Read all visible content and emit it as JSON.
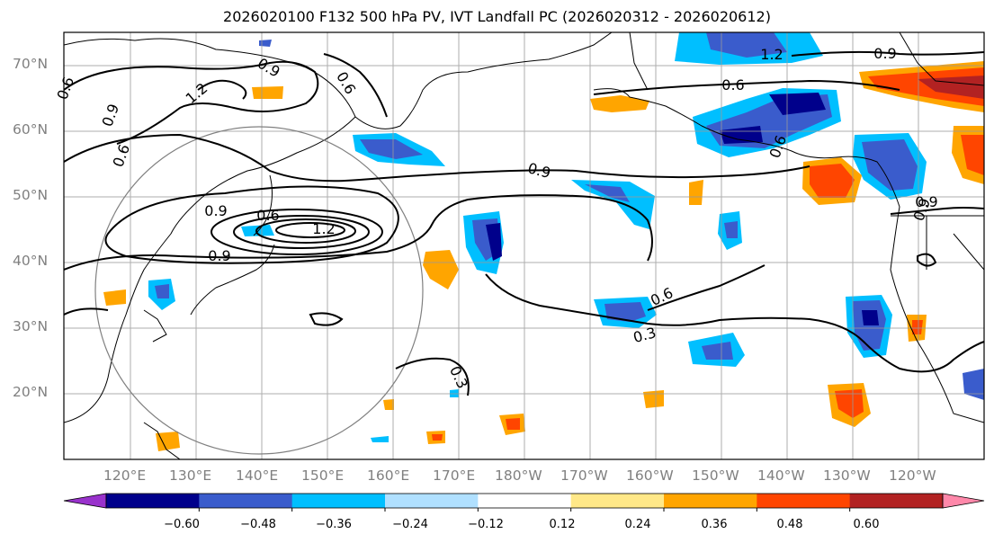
{
  "title": "2026020100 F132 500 hPa PV, IVT Landfall PC (2026020312 - 2026020612)",
  "lat_labels": [
    "70°N",
    "60°N",
    "50°N",
    "40°N",
    "30°N",
    "20°N"
  ],
  "lon_labels": [
    "120°E",
    "130°E",
    "140°E",
    "150°E",
    "160°E",
    "170°E",
    "180°W",
    "170°W",
    "160°W",
    "150°W",
    "140°W",
    "130°W",
    "120°W"
  ],
  "contour_labels": [
    "0.9",
    "0.9",
    "1.2",
    "0.6",
    "0.9",
    "0.6",
    "1.2",
    "0.9",
    "0.6",
    "0.9",
    "0.3",
    "0.6",
    "0.3",
    "1.2",
    "0.6",
    "0.9",
    "0.6",
    "0.9",
    "0.6",
    "0.9"
  ],
  "colorbar": {
    "tick_labels": [
      "−0.60",
      "−0.48",
      "−0.36",
      "−0.24",
      "−0.12",
      "0.12",
      "0.24",
      "0.36",
      "0.48",
      "0.60"
    ],
    "colors": [
      "#9932cc",
      "#00008b",
      "#3a5ccc",
      "#00bfff",
      "#b0e0ff",
      "#ffffff",
      "#ffe888",
      "#ffa500",
      "#ff4500",
      "#b22222",
      "#ff88aa"
    ]
  }
}
